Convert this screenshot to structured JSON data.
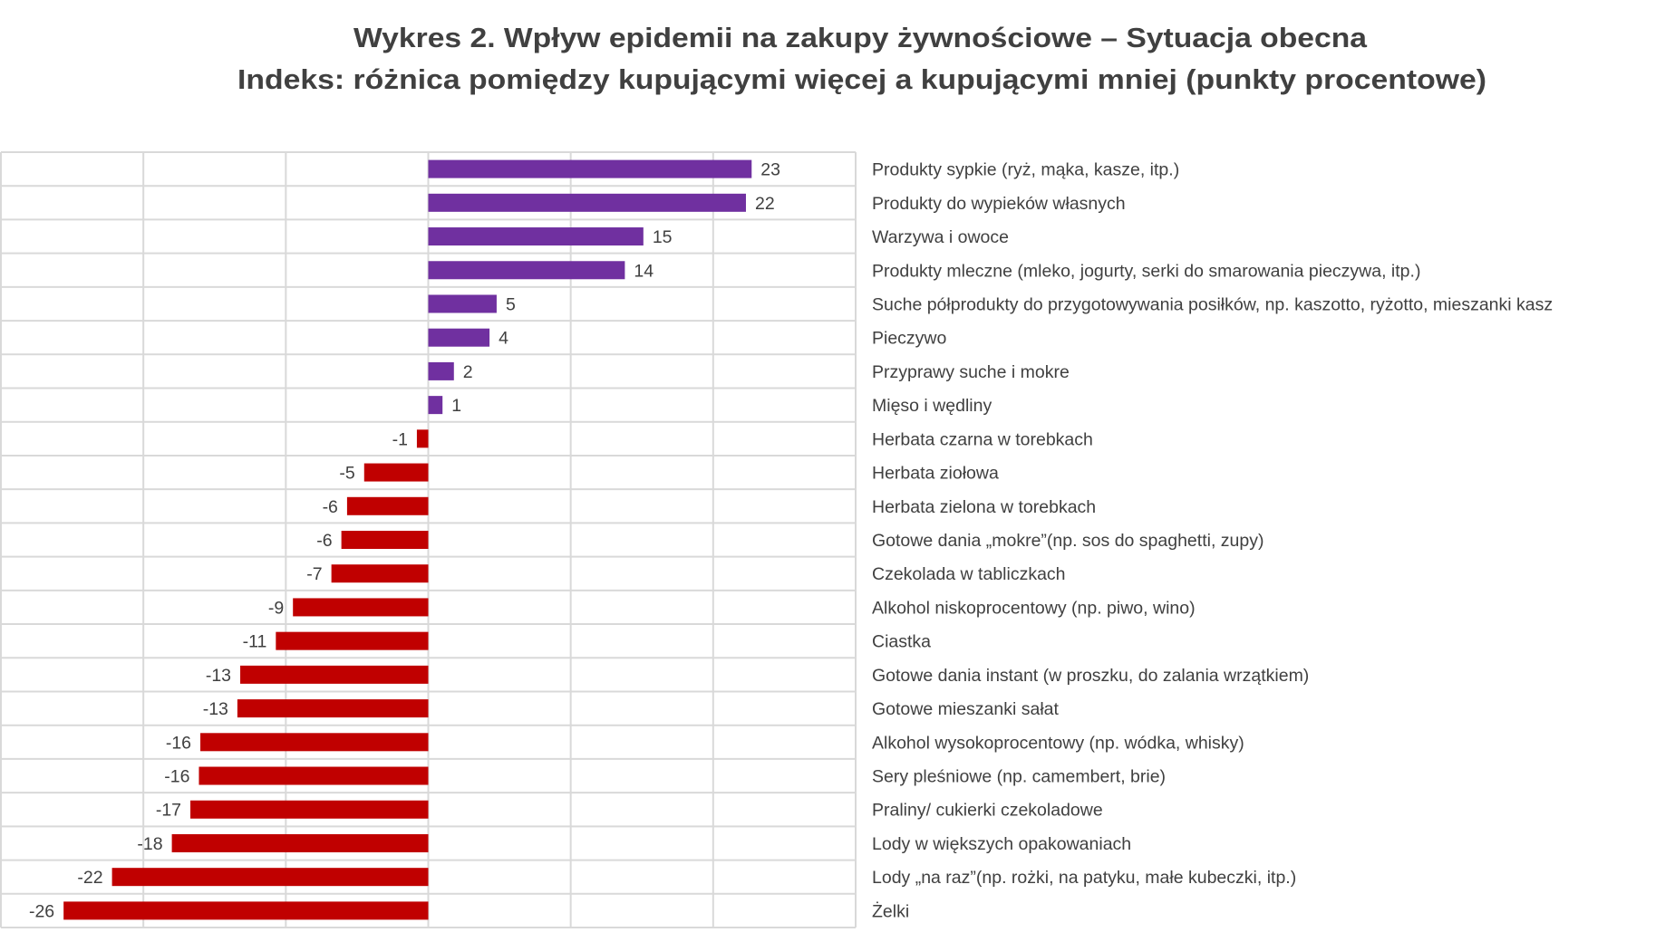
{
  "chart_data": {
    "type": "bar",
    "orientation": "horizontal",
    "title": "Wykres 2. Wpływ epidemii na zakupy żywnościowe – Sytuacja obecna",
    "subtitle": "Indeks: różnica pomiędzy kupującymi więcej a kupującymi mniej (punkty procentowe)",
    "xlabel": "",
    "ylabel": "",
    "xlim": [
      -30,
      30
    ],
    "x_grid_step": 10,
    "grid": true,
    "legend": "none",
    "tick_labels_visible": false,
    "categories": [
      "Produkty sypkie (ryż, mąka, kasze, itp.)",
      "Produkty do wypieków własnych",
      "Warzywa i owoce",
      "Produkty mleczne (mleko, jogurty, serki do smarowania pieczywa, itp.)",
      "Suche półprodukty do przygotowywania posiłków, np. kaszotto, ryżotto, mieszanki kasz",
      "Pieczywo",
      "Przyprawy suche i mokre",
      "Mięso i wędliny",
      "Herbata czarna w torebkach",
      "Herbata ziołowa",
      "Herbata zielona w torebkach",
      "Gotowe dania „mokre”(np. sos do spaghetti, zupy)",
      "Czekolada w tabliczkach",
      "Alkohol niskoprocentowy (np. piwo, wino)",
      "Ciastka",
      "Gotowe dania instant (w proszku, do zalania wrzątkiem)",
      "Gotowe mieszanki sałat",
      "Alkohol wysokoprocentowy (np. wódka, whisky)",
      "Sery pleśniowe (np. camembert, brie)",
      "Praliny/ cukierki czekoladowe",
      "Lody w większych opakowaniach",
      "Lody „na raz”(np. rożki, na patyku, małe kubeczki, itp.)",
      "Żelki"
    ],
    "values": [
      22.7,
      22.3,
      15.1,
      13.8,
      4.8,
      4.3,
      1.8,
      1.0,
      -0.8,
      -4.5,
      -5.7,
      -6.1,
      -6.8,
      -9.5,
      -10.7,
      -13.2,
      -13.4,
      -16.0,
      -16.1,
      -16.7,
      -18.0,
      -22.2,
      -25.6
    ],
    "data_labels": [
      "23",
      "22",
      "15",
      "14",
      "5",
      "4",
      "2",
      "1",
      "-1",
      "-5",
      "-6",
      "-6",
      "-7",
      "-9",
      "-11",
      "-13",
      "-13",
      "-16",
      "-16",
      "-17",
      "-18",
      "-22",
      "-26"
    ],
    "colors": {
      "positive": "#7030A0",
      "negative": "#C00000",
      "grid": "#D9D9D9",
      "text": "#404040"
    }
  }
}
